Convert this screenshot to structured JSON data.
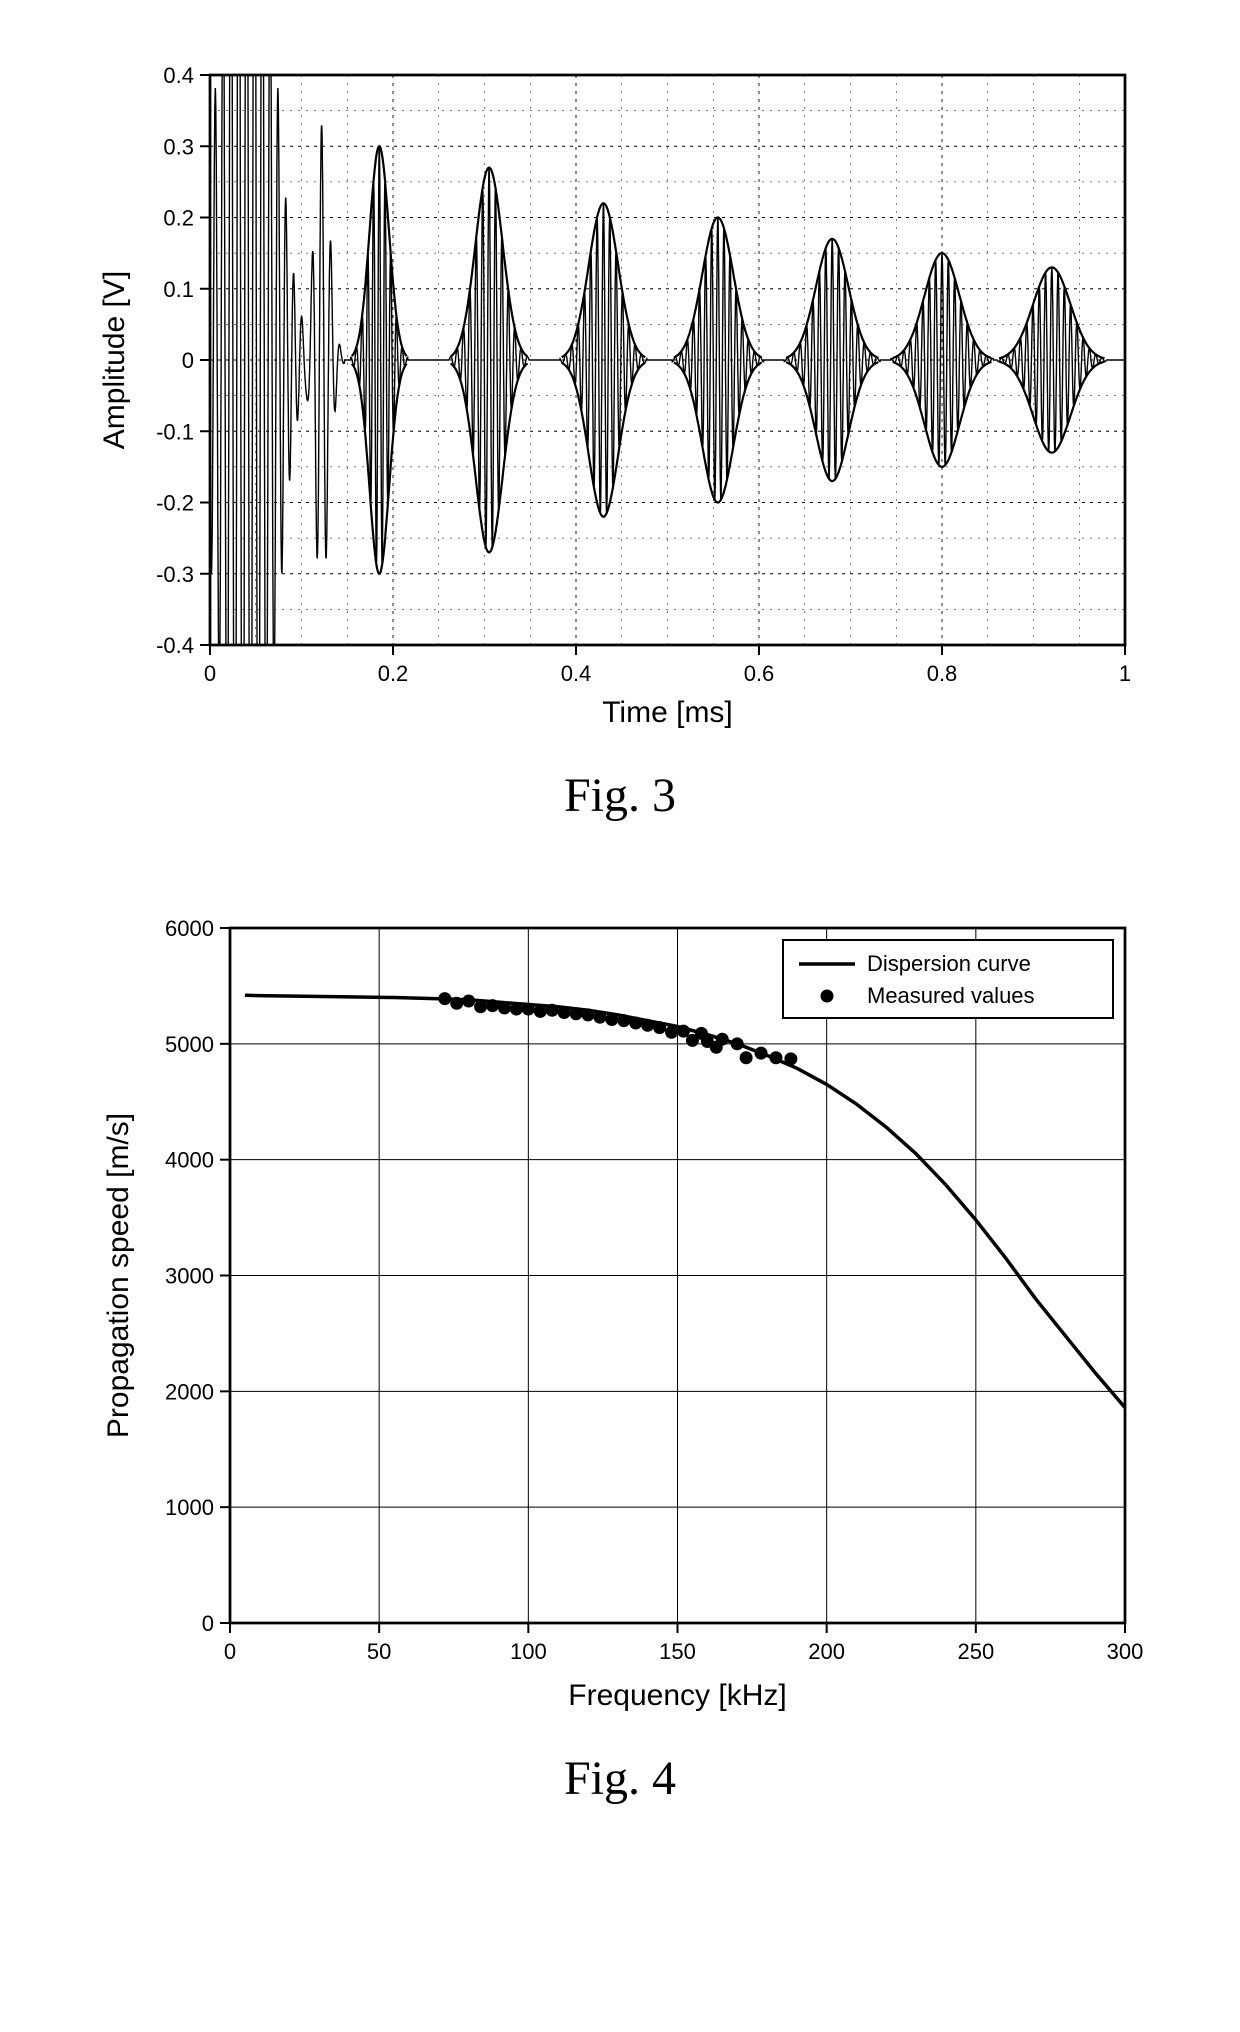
{
  "fig3": {
    "type": "line-signal",
    "caption": "Fig. 3",
    "xlabel": "Time [ms]",
    "ylabel": "Amplitude [V]",
    "xlim": [
      0,
      1.0
    ],
    "ylim": [
      -0.4,
      0.4
    ],
    "xticks": [
      0,
      0.2,
      0.4,
      0.6,
      0.8,
      1.0
    ],
    "yticks": [
      -0.4,
      -0.3,
      -0.2,
      -0.1,
      0,
      0.1,
      0.2,
      0.3,
      0.4
    ],
    "xticklabels": [
      "0",
      "0.2",
      "0.4",
      "0.6",
      "0.8",
      "1"
    ],
    "yticklabels": [
      "-0.4",
      "-0.3",
      "-0.2",
      "-0.1",
      "0",
      "0.1",
      "0.2",
      "0.3",
      "0.4"
    ],
    "minor_x": [
      0.05,
      0.1,
      0.15,
      0.25,
      0.3,
      0.35,
      0.45,
      0.5,
      0.55,
      0.65,
      0.7,
      0.75,
      0.85,
      0.9,
      0.95
    ],
    "minor_y": [
      -0.35,
      -0.25,
      -0.15,
      -0.05,
      0.05,
      0.15,
      0.25,
      0.35
    ],
    "background_color": "#ffffff",
    "grid_color": "#000000",
    "axis_color": "#000000",
    "signal_color": "#000000",
    "label_fontsize": 30,
    "tick_fontsize": 22,
    "bursts": [
      {
        "burst_center": 0.04,
        "burst_half_width": 0.06,
        "carrier_amp": 0.95,
        "envelope_on": false,
        "n_cycles": 14
      },
      {
        "burst_center": 0.122,
        "burst_half_width": 0.02,
        "carrier_amp": 0.33,
        "envelope_on": false,
        "n_cycles": 4
      },
      {
        "burst_center": 0.185,
        "burst_half_width": 0.025,
        "carrier_amp": 0.3,
        "envelope_on": true,
        "n_cycles": 8
      },
      {
        "burst_center": 0.305,
        "burst_half_width": 0.035,
        "carrier_amp": 0.27,
        "envelope_on": true,
        "n_cycles": 10
      },
      {
        "burst_center": 0.43,
        "burst_half_width": 0.038,
        "carrier_amp": 0.22,
        "envelope_on": true,
        "n_cycles": 11
      },
      {
        "burst_center": 0.555,
        "burst_half_width": 0.04,
        "carrier_amp": 0.2,
        "envelope_on": true,
        "n_cycles": 12
      },
      {
        "burst_center": 0.68,
        "burst_half_width": 0.042,
        "carrier_amp": 0.17,
        "envelope_on": true,
        "n_cycles": 12
      },
      {
        "burst_center": 0.8,
        "burst_half_width": 0.045,
        "carrier_amp": 0.15,
        "envelope_on": true,
        "n_cycles": 13
      },
      {
        "burst_center": 0.92,
        "burst_half_width": 0.048,
        "carrier_amp": 0.13,
        "envelope_on": true,
        "n_cycles": 14
      }
    ],
    "carrier_line_width": 1.4,
    "envelope_line_width": 2.2,
    "axis_line_width": 2.5
  },
  "fig4": {
    "type": "line+scatter",
    "caption": "Fig. 4",
    "xlabel": "Frequency [kHz]",
    "ylabel": "Propagation speed [m/s]",
    "xlim": [
      0,
      300
    ],
    "ylim": [
      0,
      6000
    ],
    "xticks": [
      0,
      50,
      100,
      150,
      200,
      250,
      300
    ],
    "yticks": [
      0,
      1000,
      2000,
      3000,
      4000,
      5000,
      6000
    ],
    "xticklabels": [
      "0",
      "50",
      "100",
      "150",
      "200",
      "250",
      "300"
    ],
    "yticklabels": [
      "0",
      "1000",
      "2000",
      "3000",
      "4000",
      "5000",
      "6000"
    ],
    "background_color": "#ffffff",
    "grid_color": "#000000",
    "axis_color": "#000000",
    "curve_color": "#000000",
    "marker_color": "#000000",
    "label_fontsize": 30,
    "tick_fontsize": 22,
    "legend": {
      "entries": [
        {
          "type": "line",
          "label": "Dispersion curve"
        },
        {
          "type": "marker",
          "label": "Measured values"
        }
      ],
      "fontsize": 22,
      "border_color": "#000000"
    },
    "curve_line_width": 3.5,
    "axis_line_width": 2.5,
    "marker_radius": 6.5,
    "dispersion_curve": [
      [
        5,
        5420
      ],
      [
        12,
        5415
      ],
      [
        25,
        5410
      ],
      [
        40,
        5405
      ],
      [
        55,
        5400
      ],
      [
        70,
        5390
      ],
      [
        80,
        5380
      ],
      [
        90,
        5360
      ],
      [
        100,
        5340
      ],
      [
        110,
        5320
      ],
      [
        120,
        5290
      ],
      [
        130,
        5250
      ],
      [
        140,
        5200
      ],
      [
        150,
        5150
      ],
      [
        160,
        5080
      ],
      [
        170,
        5000
      ],
      [
        180,
        4900
      ],
      [
        190,
        4790
      ],
      [
        200,
        4650
      ],
      [
        210,
        4480
      ],
      [
        220,
        4280
      ],
      [
        230,
        4050
      ],
      [
        240,
        3780
      ],
      [
        250,
        3480
      ],
      [
        260,
        3150
      ],
      [
        270,
        2800
      ],
      [
        280,
        2480
      ],
      [
        290,
        2160
      ],
      [
        300,
        1860
      ]
    ],
    "measured_points": [
      [
        72,
        5390
      ],
      [
        76,
        5350
      ],
      [
        80,
        5370
      ],
      [
        84,
        5320
      ],
      [
        88,
        5330
      ],
      [
        92,
        5310
      ],
      [
        96,
        5300
      ],
      [
        100,
        5300
      ],
      [
        104,
        5280
      ],
      [
        108,
        5290
      ],
      [
        112,
        5270
      ],
      [
        116,
        5260
      ],
      [
        120,
        5250
      ],
      [
        124,
        5230
      ],
      [
        128,
        5210
      ],
      [
        132,
        5200
      ],
      [
        136,
        5180
      ],
      [
        140,
        5160
      ],
      [
        144,
        5140
      ],
      [
        148,
        5100
      ],
      [
        152,
        5110
      ],
      [
        155,
        5030
      ],
      [
        158,
        5090
      ],
      [
        160,
        5020
      ],
      [
        163,
        4970
      ],
      [
        165,
        5040
      ],
      [
        170,
        5000
      ],
      [
        173,
        4880
      ],
      [
        178,
        4920
      ],
      [
        183,
        4880
      ],
      [
        188,
        4870
      ]
    ]
  }
}
